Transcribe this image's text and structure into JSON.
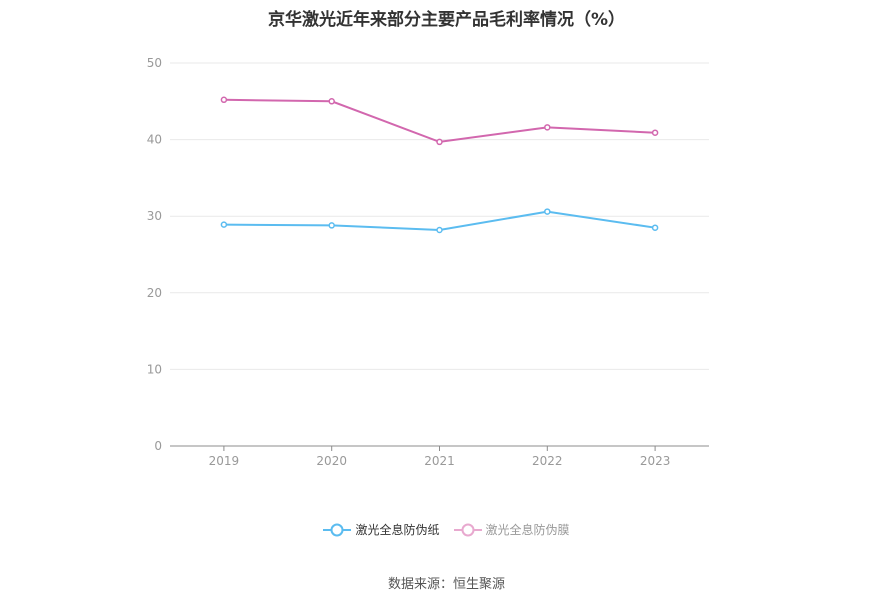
{
  "chart_data": {
    "type": "line",
    "title": "京华激光近年来部分主要产品毛利率情况（%）",
    "categories": [
      "2019",
      "2020",
      "2021",
      "2022",
      "2023"
    ],
    "series": [
      {
        "name": "激光全息防伪纸",
        "color": "#5bbcf0",
        "values": [
          28.9,
          28.8,
          28.2,
          30.6,
          28.5
        ]
      },
      {
        "name": "激光全息防伪膜",
        "color": "#d267ae",
        "values": [
          45.2,
          45.0,
          39.7,
          41.6,
          40.9
        ]
      }
    ],
    "ylim": [
      0,
      50
    ],
    "yticks": [
      0,
      10,
      20,
      30,
      40,
      50
    ],
    "grid": true,
    "legend_position": "bottom"
  },
  "legend": {
    "item1": {
      "label": "激光全息防伪纸",
      "color": "#5bbcf0",
      "text_color": "#333333"
    },
    "item2": {
      "label": "激光全息防伪膜",
      "color": "#e8a9cf",
      "text_color": "#999999"
    }
  },
  "source": "数据来源：恒生聚源"
}
